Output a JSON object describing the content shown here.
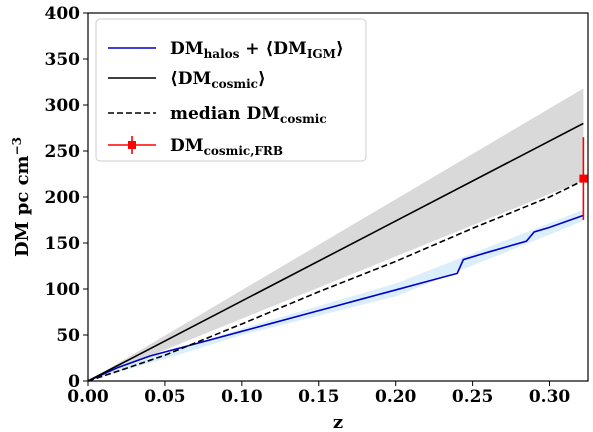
{
  "chart_data": {
    "type": "line",
    "xlabel": "z",
    "ylabel": "DM pc cm",
    "ylabel_exp": "−3",
    "xlim": [
      0.0,
      0.325
    ],
    "ylim": [
      0,
      400
    ],
    "xticks": [
      0.0,
      0.05,
      0.1,
      0.15,
      0.2,
      0.25,
      0.3
    ],
    "xtick_labels": [
      "0.00",
      "0.05",
      "0.10",
      "0.15",
      "0.20",
      "0.25",
      "0.30"
    ],
    "yticks": [
      0,
      50,
      100,
      150,
      200,
      250,
      300,
      350,
      400
    ],
    "ytick_labels": [
      "0",
      "50",
      "100",
      "150",
      "200",
      "250",
      "300",
      "350",
      "400"
    ],
    "legend_placement": "upper-left",
    "colors": {
      "halos": "#0000cc",
      "cosmic": "#000000",
      "frb": "#ff0000",
      "band_cosmic": "#d9d9d9",
      "band_halos": "#dbeefb"
    },
    "legend": [
      {
        "key": "halos",
        "parts": [
          [
            "DM",
            ""
          ],
          [
            "halos",
            "sub"
          ],
          [
            " + ⟨DM",
            ""
          ],
          [
            "IGM",
            "sub"
          ],
          [
            "⟩",
            ""
          ]
        ]
      },
      {
        "key": "mean",
        "parts": [
          [
            "⟨DM",
            ""
          ],
          [
            "cosmic",
            "sub"
          ],
          [
            "⟩",
            ""
          ]
        ]
      },
      {
        "key": "median",
        "parts": [
          [
            "median DM",
            ""
          ],
          [
            "cosmic",
            "sub"
          ]
        ]
      },
      {
        "key": "frb",
        "parts": [
          [
            "DM",
            ""
          ],
          [
            "cosmic,FRB",
            "sub"
          ]
        ]
      }
    ],
    "series": [
      {
        "key": "halos",
        "style": "solid",
        "x": [
          0.0,
          0.02,
          0.04,
          0.06,
          0.08,
          0.1,
          0.12,
          0.14,
          0.16,
          0.18,
          0.2,
          0.22,
          0.24,
          0.244,
          0.26,
          0.285,
          0.29,
          0.3,
          0.322
        ],
        "y": [
          0,
          15,
          27,
          36,
          45,
          54,
          63,
          72,
          81,
          90,
          99,
          108,
          117,
          132,
          140,
          152,
          162,
          167,
          180
        ]
      },
      {
        "key": "mean",
        "style": "solid",
        "x": [
          0.0,
          0.322
        ],
        "y": [
          0,
          280
        ]
      },
      {
        "key": "median",
        "style": "dashed",
        "x": [
          0.0,
          0.02,
          0.05,
          0.1,
          0.15,
          0.2,
          0.25,
          0.3,
          0.322
        ],
        "y": [
          0,
          11,
          28,
          62,
          97,
          130,
          166,
          200,
          218
        ]
      }
    ],
    "bands": [
      {
        "key": "cosmic",
        "x": [
          0.0,
          0.322
        ],
        "upper": [
          0,
          318
        ],
        "lower": [
          0,
          218
        ]
      },
      {
        "key": "halos",
        "x": [
          0.0,
          0.02,
          0.05,
          0.1,
          0.2,
          0.322
        ],
        "upper": [
          0,
          18,
          30,
          57,
          106,
          186
        ],
        "lower": [
          0,
          10,
          24,
          50,
          92,
          174
        ]
      }
    ],
    "points": [
      {
        "key": "frb",
        "x": 0.322,
        "y": 220,
        "yerr_low": 45,
        "yerr_high": 45
      }
    ]
  }
}
